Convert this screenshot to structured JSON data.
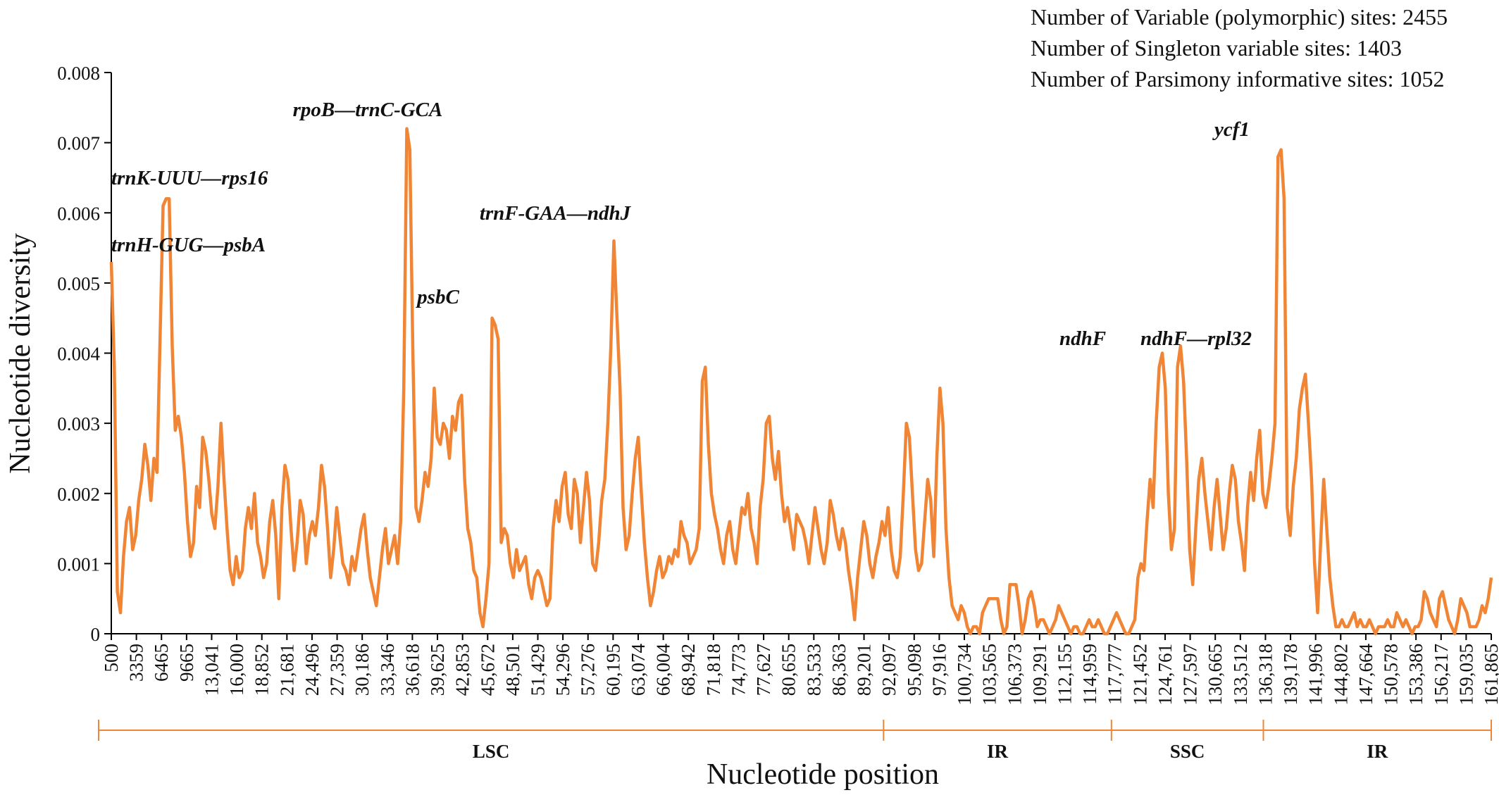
{
  "stats": [
    "Number of Variable (polymorphic) sites: 2455",
    "Number of Singleton variable sites: 1403",
    "Number of Parsimony informative sites: 1052"
  ],
  "colors": {
    "line": "#F08535",
    "region": "#F08535",
    "axis": "#000000"
  },
  "chart_data": {
    "type": "line",
    "title": "",
    "xlabel": "Nucleotide position",
    "ylabel": "Nucleotide diversity",
    "ylim": [
      0,
      0.008
    ],
    "yticks": [
      "0",
      "0.001",
      "0.002",
      "0.003",
      "0.004",
      "0.005",
      "0.006",
      "0.007",
      "0.008"
    ],
    "grid": false,
    "legend": "none",
    "xtick_labels": [
      "500",
      "3359",
      "6465",
      "9665",
      "13,041",
      "16,000",
      "18,852",
      "21,681",
      "24,496",
      "27,359",
      "30,186",
      "33,346",
      "36,618",
      "39,625",
      "42,853",
      "45,672",
      "48,501",
      "51,429",
      "54,296",
      "57,276",
      "60,195",
      "63,074",
      "66,004",
      "68,942",
      "71,818",
      "74,773",
      "77,627",
      "80,655",
      "83,533",
      "86,363",
      "89,201",
      "92,097",
      "95,098",
      "97,916",
      "100,734",
      "103,565",
      "106,373",
      "109,291",
      "112,155",
      "114,959",
      "117,777",
      "121,452",
      "124,761",
      "127,597",
      "130,665",
      "133,512",
      "136,318",
      "139,178",
      "141,996",
      "144,802",
      "147,664",
      "150,578",
      "153,386",
      "156,217",
      "159,035",
      "161,865"
    ],
    "series": [
      {
        "values": [
          0.0053,
          0.0038,
          0.0006,
          0.0003,
          0.0011,
          0.0016,
          0.0018,
          0.0012,
          0.0014,
          0.0019,
          0.0022,
          0.0027,
          0.0024,
          0.0019,
          0.0025,
          0.0023,
          0.0042,
          0.0061,
          0.0062,
          0.0062,
          0.0041,
          0.0029,
          0.0031,
          0.0028,
          0.0023,
          0.0016,
          0.0011,
          0.0013,
          0.0021,
          0.0018,
          0.0028,
          0.0026,
          0.0022,
          0.0017,
          0.0015,
          0.0021,
          0.003,
          0.0022,
          0.0015,
          0.0009,
          0.0007,
          0.0011,
          0.0008,
          0.0009,
          0.0015,
          0.0018,
          0.0015,
          0.002,
          0.0013,
          0.0011,
          0.0008,
          0.001,
          0.0016,
          0.0019,
          0.0014,
          0.0005,
          0.0018,
          0.0024,
          0.0022,
          0.0015,
          0.0009,
          0.0013,
          0.0019,
          0.0017,
          0.001,
          0.0014,
          0.0016,
          0.0014,
          0.0018,
          0.0024,
          0.0021,
          0.0015,
          0.0008,
          0.0012,
          0.0018,
          0.0014,
          0.001,
          0.0009,
          0.0007,
          0.0011,
          0.0009,
          0.0012,
          0.0015,
          0.0017,
          0.0012,
          0.0008,
          0.0006,
          0.0004,
          0.0008,
          0.0012,
          0.0015,
          0.001,
          0.0012,
          0.0014,
          0.001,
          0.0016,
          0.0035,
          0.0072,
          0.0069,
          0.004,
          0.0018,
          0.0016,
          0.0019,
          0.0023,
          0.0021,
          0.0025,
          0.0035,
          0.0028,
          0.0027,
          0.003,
          0.0029,
          0.0025,
          0.0031,
          0.0029,
          0.0033,
          0.0034,
          0.0022,
          0.0015,
          0.0013,
          0.0009,
          0.0008,
          0.0003,
          0.0001,
          0.0005,
          0.001,
          0.0045,
          0.0044,
          0.0042,
          0.0013,
          0.0015,
          0.0014,
          0.001,
          0.0008,
          0.0012,
          0.0009,
          0.001,
          0.0011,
          0.0007,
          0.0005,
          0.0008,
          0.0009,
          0.0008,
          0.0006,
          0.0004,
          0.0005,
          0.0015,
          0.0019,
          0.0016,
          0.0021,
          0.0023,
          0.0017,
          0.0015,
          0.0022,
          0.002,
          0.0013,
          0.0018,
          0.0023,
          0.0019,
          0.001,
          0.0009,
          0.0013,
          0.0019,
          0.0022,
          0.003,
          0.0041,
          0.0056,
          0.0045,
          0.0035,
          0.0018,
          0.0012,
          0.0014,
          0.002,
          0.0025,
          0.0028,
          0.002,
          0.0013,
          0.0008,
          0.0004,
          0.0006,
          0.0009,
          0.0011,
          0.0008,
          0.0009,
          0.0011,
          0.001,
          0.0012,
          0.0011,
          0.0016,
          0.0014,
          0.0013,
          0.001,
          0.0011,
          0.0012,
          0.0015,
          0.0036,
          0.0038,
          0.0027,
          0.002,
          0.0017,
          0.0015,
          0.0012,
          0.001,
          0.0014,
          0.0016,
          0.0012,
          0.001,
          0.0014,
          0.0018,
          0.0017,
          0.002,
          0.0015,
          0.0013,
          0.001,
          0.0018,
          0.0022,
          0.003,
          0.0031,
          0.0025,
          0.0022,
          0.0026,
          0.002,
          0.0016,
          0.0018,
          0.0015,
          0.0012,
          0.0017,
          0.0016,
          0.0015,
          0.0013,
          0.001,
          0.0014,
          0.0018,
          0.0015,
          0.0012,
          0.001,
          0.0013,
          0.0019,
          0.0017,
          0.0014,
          0.0012,
          0.0015,
          0.0013,
          0.0009,
          0.0006,
          0.0002,
          0.0008,
          0.0012,
          0.0016,
          0.0014,
          0.001,
          0.0008,
          0.0011,
          0.0013,
          0.0016,
          0.0014,
          0.0018,
          0.0012,
          0.0009,
          0.0008,
          0.0011,
          0.002,
          0.003,
          0.0028,
          0.002,
          0.0012,
          0.0009,
          0.001,
          0.0016,
          0.0022,
          0.0019,
          0.0011,
          0.0025,
          0.0035,
          0.003,
          0.0015,
          0.0008,
          0.0004,
          0.0003,
          0.0002,
          0.0004,
          0.0003,
          0.0001,
          0.0,
          0.0001,
          0.0001,
          0.0,
          0.0003,
          0.0004,
          0.0005,
          0.0005,
          0.0005,
          0.0005,
          0.0002,
          0.0,
          0.0001,
          0.0007,
          0.0007,
          0.0007,
          0.0004,
          0.0,
          0.0002,
          0.0005,
          0.0006,
          0.0004,
          0.0001,
          0.0002,
          0.0002,
          0.0001,
          0.0,
          0.0001,
          0.0002,
          0.0004,
          0.0003,
          0.0002,
          0.0001,
          0.0,
          0.0001,
          0.0001,
          0.0,
          0.0,
          0.0001,
          0.0002,
          0.0001,
          0.0001,
          0.0002,
          0.0001,
          0.0,
          0.0,
          0.0001,
          0.0002,
          0.0003,
          0.0002,
          0.0001,
          0.0,
          0.0,
          0.0001,
          0.0002,
          0.0008,
          0.001,
          0.0009,
          0.0016,
          0.0022,
          0.0018,
          0.003,
          0.0038,
          0.004,
          0.0035,
          0.002,
          0.0012,
          0.0015,
          0.0038,
          0.0041,
          0.0036,
          0.0025,
          0.0012,
          0.0007,
          0.0015,
          0.0022,
          0.0025,
          0.002,
          0.0016,
          0.0012,
          0.0018,
          0.0022,
          0.0017,
          0.0012,
          0.0015,
          0.002,
          0.0024,
          0.0022,
          0.0016,
          0.0013,
          0.0009,
          0.0018,
          0.0023,
          0.0019,
          0.0025,
          0.0029,
          0.002,
          0.0018,
          0.0021,
          0.0025,
          0.003,
          0.0068,
          0.0069,
          0.0062,
          0.0018,
          0.0014,
          0.0021,
          0.0025,
          0.0032,
          0.0035,
          0.0037,
          0.003,
          0.0022,
          0.001,
          0.0003,
          0.0013,
          0.0022,
          0.0015,
          0.0008,
          0.0004,
          0.0001,
          0.0001,
          0.0002,
          0.0001,
          0.0001,
          0.0002,
          0.0003,
          0.0001,
          0.0002,
          0.0001,
          0.0001,
          0.0002,
          0.0001,
          0.0,
          0.0001,
          0.0001,
          0.0001,
          0.0002,
          0.0001,
          0.0001,
          0.0003,
          0.0002,
          0.0001,
          0.0002,
          0.0001,
          0.0,
          0.0001,
          0.0001,
          0.0002,
          0.0006,
          0.0005,
          0.0003,
          0.0002,
          0.0001,
          0.0005,
          0.0006,
          0.0004,
          0.0002,
          0.0001,
          0.0,
          0.0002,
          0.0005,
          0.0004,
          0.0003,
          0.0001,
          0.0001,
          0.0001,
          0.0002,
          0.0004,
          0.0003,
          0.0005,
          0.0008
        ]
      }
    ],
    "annotations": [
      {
        "text": "trnK-UUU—rps16",
        "index": 18
      },
      {
        "text": "trnH-GUG—psbA",
        "index": 0
      },
      {
        "text": "rpoB—trnC-GCA",
        "index": 97
      },
      {
        "text": "psbC",
        "index": 123
      },
      {
        "text": "trnF-GAA—ndhJ",
        "index": 166
      },
      {
        "text": "ndhF",
        "index": 363
      },
      {
        "text": "ndhF—rpl32",
        "index": 368
      },
      {
        "text": "ycf1",
        "index": 399
      }
    ],
    "regions": [
      {
        "label": "LSC",
        "from_tick": 0,
        "to_tick": 31
      },
      {
        "label": "IR",
        "from_tick": 31,
        "to_tick": 40
      },
      {
        "label": "SSC",
        "from_tick": 40,
        "to_tick": 46
      },
      {
        "label": "IR",
        "from_tick": 46,
        "to_tick": 55
      }
    ]
  }
}
